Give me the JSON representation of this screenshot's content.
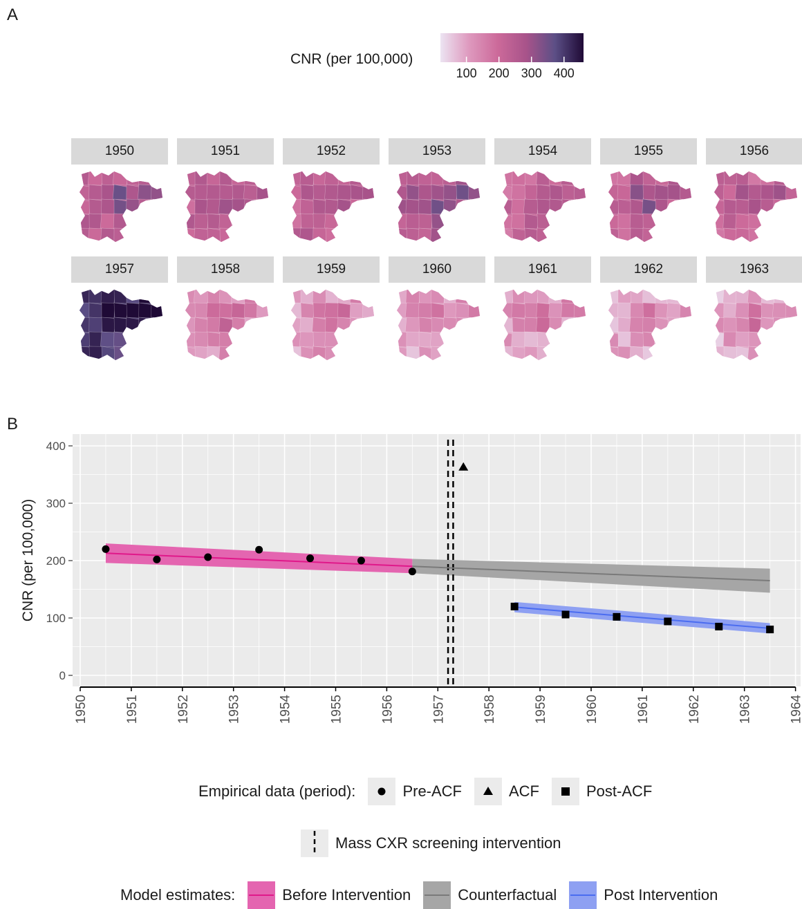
{
  "panels": {
    "a_label": "A",
    "b_label": "B"
  },
  "colors": {
    "before": "#e0188a",
    "before_fill": "#e465b0",
    "counterfactual": "#7a7a7a",
    "counterfactual_fill": "#a6a6a6",
    "post": "#4a6cf0",
    "post_fill": "#8ea0f2",
    "panel_bg": "#ebebeb",
    "grid": "#ffffff",
    "scale": [
      "#ece4f2",
      "#de99be",
      "#cc6a9a",
      "#a8538a",
      "#5c4f86",
      "#1f0a36"
    ]
  },
  "color_legend": {
    "title": "CNR (per 100,000)",
    "ticks": [
      "100",
      "200",
      "300",
      "400"
    ],
    "tick_values": [
      100,
      200,
      300,
      400
    ],
    "range": [
      20,
      460
    ]
  },
  "facets": [
    {
      "year": "1950",
      "level": 0.48
    },
    {
      "year": "1951",
      "level": 0.45
    },
    {
      "year": "1952",
      "level": 0.46
    },
    {
      "year": "1953",
      "level": 0.52
    },
    {
      "year": "1954",
      "level": 0.42
    },
    {
      "year": "1955",
      "level": 0.45
    },
    {
      "year": "1956",
      "level": 0.4
    },
    {
      "year": "1957",
      "level": 0.85
    },
    {
      "year": "1958",
      "level": 0.22
    },
    {
      "year": "1959",
      "level": 0.2
    },
    {
      "year": "1960",
      "level": 0.18
    },
    {
      "year": "1961",
      "level": 0.19
    },
    {
      "year": "1962",
      "level": 0.17
    },
    {
      "year": "1963",
      "level": 0.16
    }
  ],
  "chart_data": {
    "type": "line",
    "ylabel": "CNR (per 100,000)",
    "xlabel": "",
    "xlim": [
      1950,
      1964
    ],
    "ylim": [
      0,
      400
    ],
    "x_ticks": [
      "1950",
      "1951",
      "1952",
      "1953",
      "1954",
      "1955",
      "1956",
      "1957",
      "1958",
      "1959",
      "1960",
      "1961",
      "1962",
      "1963",
      "1964"
    ],
    "y_ticks": [
      "0",
      "100",
      "200",
      "300",
      "400"
    ],
    "grid": true,
    "points": {
      "pre_acf": [
        [
          1950.5,
          220
        ],
        [
          1951.5,
          202
        ],
        [
          1952.5,
          206
        ],
        [
          1953.5,
          219
        ],
        [
          1954.5,
          204
        ],
        [
          1955.5,
          200
        ],
        [
          1956.5,
          181
        ]
      ],
      "acf": [
        [
          1957.5,
          363
        ]
      ],
      "post_acf": [
        [
          1958.5,
          120
        ],
        [
          1959.5,
          106
        ],
        [
          1960.5,
          102
        ],
        [
          1961.5,
          94
        ],
        [
          1962.5,
          85
        ],
        [
          1963.5,
          80
        ]
      ]
    },
    "model": {
      "before": {
        "x": [
          1950.5,
          1956.5
        ],
        "y": [
          213,
          190
        ],
        "lower": [
          196,
          178
        ],
        "upper": [
          230,
          203
        ]
      },
      "counterfactual": {
        "x": [
          1956.5,
          1963.5
        ],
        "y": [
          190,
          165
        ],
        "lower": [
          178,
          144
        ],
        "upper": [
          203,
          186
        ]
      },
      "post": {
        "x": [
          1958.5,
          1963.5
        ],
        "y": [
          119,
          82
        ],
        "lower": [
          110,
          73
        ],
        "upper": [
          128,
          91
        ]
      }
    },
    "intervention_lines": [
      1957.2,
      1957.3
    ]
  },
  "legend": {
    "empirical": {
      "title": "Empirical data (period):",
      "items": [
        "Pre-ACF",
        "ACF",
        "Post-ACF"
      ]
    },
    "intervention": {
      "label": "Mass CXR screening intervention"
    },
    "model": {
      "title": "Model estimates:",
      "items": [
        "Before Intervention",
        "Counterfactual",
        "Post Intervention"
      ]
    }
  }
}
